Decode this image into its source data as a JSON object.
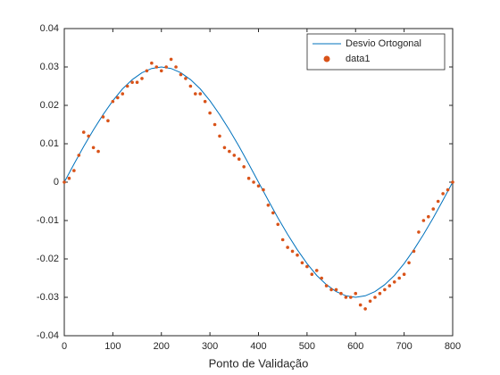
{
  "chart_data": {
    "type": "line_scatter",
    "xlabel": "Ponto de Validação",
    "xlim": [
      0,
      800
    ],
    "xticks": [
      0,
      100,
      200,
      300,
      400,
      500,
      600,
      700,
      800
    ],
    "ylim": [
      -0.04,
      0.04
    ],
    "yticks": [
      -0.04,
      -0.03,
      -0.02,
      -0.01,
      0,
      0.01,
      0.02,
      0.03,
      0.04
    ],
    "legend": "northeast",
    "series": [
      {
        "name": "Desvio Ortogonal",
        "type": "line",
        "color": "#0072bd",
        "x": [
          0,
          20,
          40,
          60,
          80,
          100,
          120,
          140,
          160,
          180,
          200,
          220,
          240,
          260,
          280,
          300,
          320,
          340,
          360,
          380,
          400,
          420,
          440,
          460,
          480,
          500,
          520,
          540,
          560,
          580,
          600,
          620,
          640,
          660,
          680,
          700,
          720,
          740,
          760,
          780,
          800
        ],
        "values": [
          0,
          0.0047,
          0.0093,
          0.0136,
          0.0176,
          0.0212,
          0.0243,
          0.0267,
          0.0285,
          0.0296,
          0.03,
          0.0296,
          0.0285,
          0.0267,
          0.0243,
          0.0212,
          0.0176,
          0.0136,
          0.0093,
          0.0047,
          0,
          -0.0047,
          -0.0093,
          -0.0136,
          -0.0176,
          -0.0212,
          -0.0243,
          -0.0267,
          -0.0285,
          -0.0296,
          -0.03,
          -0.0296,
          -0.0285,
          -0.0267,
          -0.0243,
          -0.0212,
          -0.0176,
          -0.0136,
          -0.0093,
          -0.0047,
          0
        ]
      },
      {
        "name": "data1",
        "type": "scatter",
        "color": "#d95319",
        "x": [
          0,
          10,
          20,
          30,
          40,
          50,
          60,
          70,
          80,
          90,
          100,
          110,
          120,
          130,
          140,
          150,
          160,
          170,
          180,
          190,
          200,
          210,
          220,
          230,
          240,
          250,
          260,
          270,
          280,
          290,
          300,
          310,
          320,
          330,
          340,
          350,
          360,
          370,
          380,
          390,
          400,
          410,
          420,
          430,
          440,
          450,
          460,
          470,
          480,
          490,
          500,
          510,
          520,
          530,
          540,
          550,
          560,
          570,
          580,
          590,
          600,
          610,
          620,
          630,
          640,
          650,
          660,
          670,
          680,
          690,
          700,
          710,
          720,
          730,
          740,
          750,
          760,
          770,
          780,
          790,
          800
        ],
        "values": [
          0,
          0.001,
          0.003,
          0.007,
          0.013,
          0.012,
          0.009,
          0.008,
          0.017,
          0.016,
          0.021,
          0.022,
          0.023,
          0.025,
          0.026,
          0.026,
          0.027,
          0.029,
          0.031,
          0.03,
          0.029,
          0.03,
          0.032,
          0.03,
          0.028,
          0.027,
          0.025,
          0.023,
          0.023,
          0.021,
          0.018,
          0.015,
          0.012,
          0.009,
          0.008,
          0.007,
          0.006,
          0.004,
          0.001,
          0,
          -0.001,
          -0.002,
          -0.006,
          -0.008,
          -0.011,
          -0.015,
          -0.017,
          -0.018,
          -0.019,
          -0.021,
          -0.022,
          -0.024,
          -0.023,
          -0.025,
          -0.027,
          -0.028,
          -0.028,
          -0.029,
          -0.03,
          -0.03,
          -0.029,
          -0.032,
          -0.033,
          -0.031,
          -0.03,
          -0.029,
          -0.028,
          -0.027,
          -0.026,
          -0.025,
          -0.024,
          -0.021,
          -0.018,
          -0.013,
          -0.01,
          -0.009,
          -0.007,
          -0.005,
          -0.003,
          -0.002,
          0
        ]
      }
    ]
  }
}
